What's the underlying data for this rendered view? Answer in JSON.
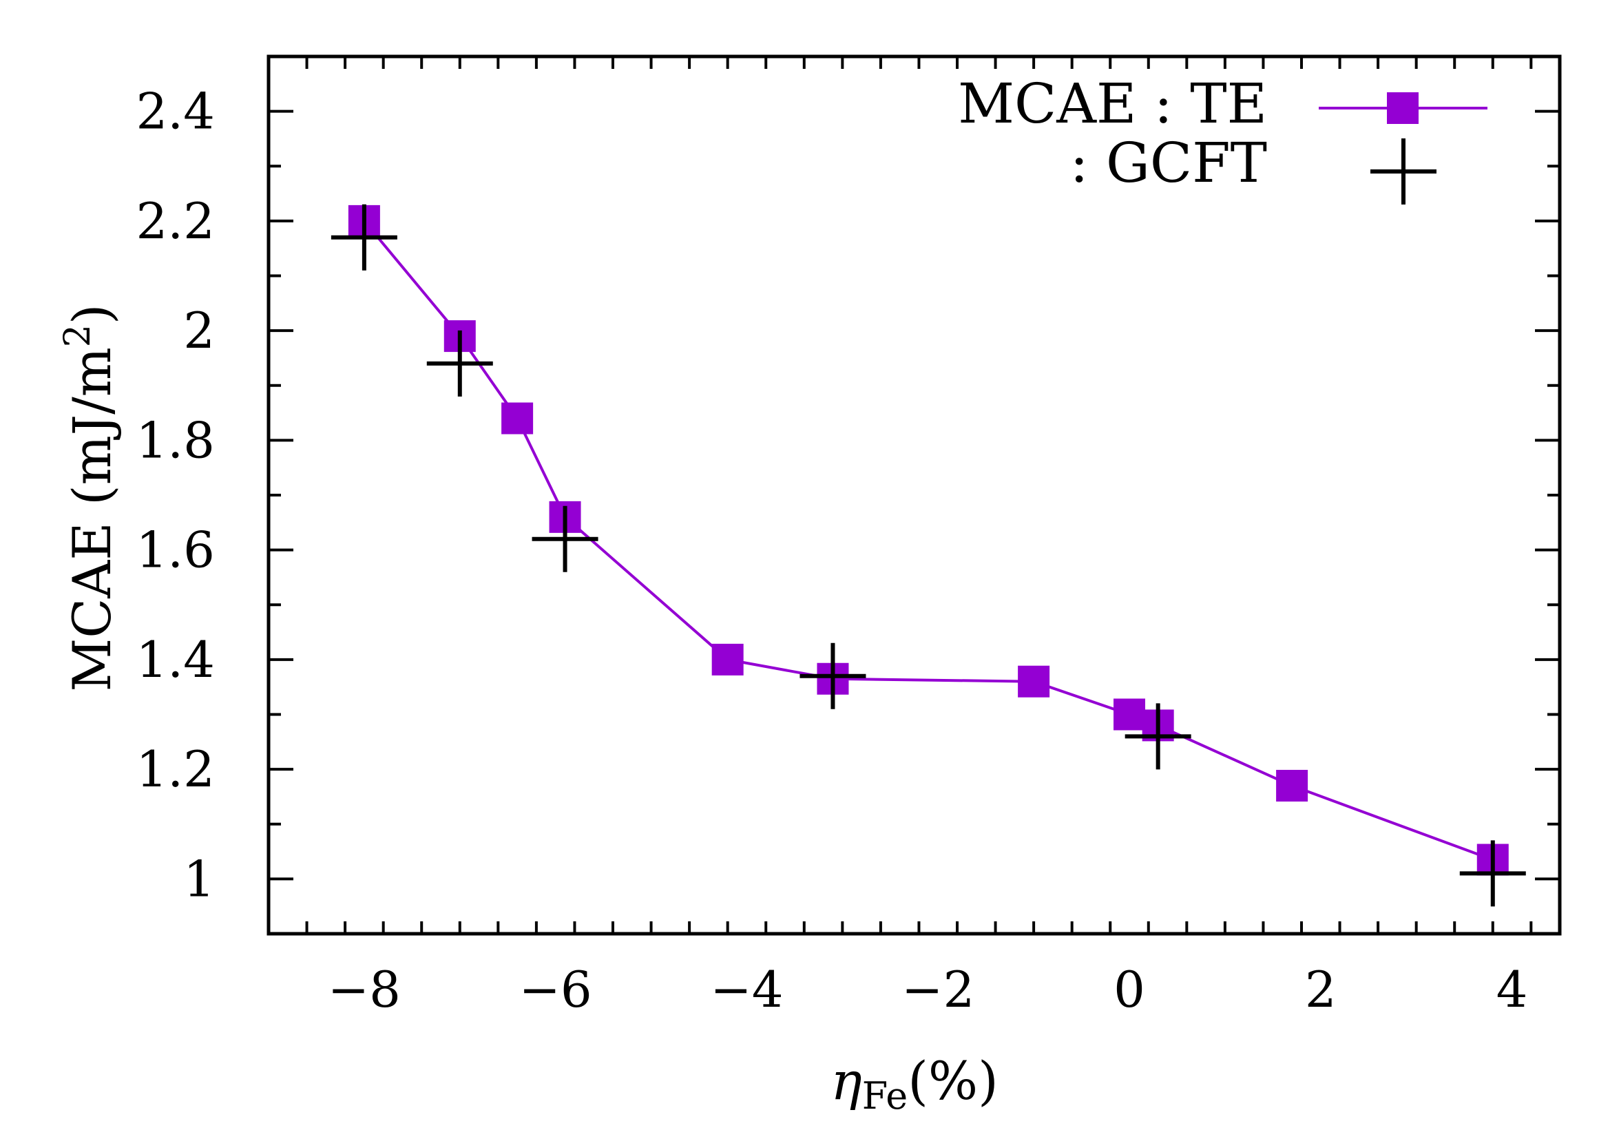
{
  "chart_data": {
    "type": "line",
    "title": "",
    "xlabel": "η",
    "xlabel_subscript": "Fe",
    "xlabel_suffix": "(%)",
    "ylabel": "MCAE (mJ/m",
    "ylabel_sup": "2",
    "ylabel_suffix": ")",
    "xlim": [
      -9.0,
      4.5
    ],
    "ylim": [
      0.9,
      2.5
    ],
    "x_ticks": [
      -8,
      -6,
      -4,
      -2,
      0,
      2,
      4
    ],
    "x_tick_labels": [
      "−8",
      "−6",
      "−4",
      "−2",
      "0",
      "2",
      "4"
    ],
    "x_minor_step": 0.4,
    "y_ticks": [
      1.0,
      1.2,
      1.4,
      1.6,
      1.8,
      2.0,
      2.2,
      2.4
    ],
    "y_tick_labels": [
      "1",
      "1.2",
      "1.4",
      "1.6",
      "1.8",
      "2",
      "2.2",
      "2.4"
    ],
    "y_minor_step": 0.1,
    "grid": false,
    "legend_position": "top-right",
    "series": [
      {
        "name": "MCAE : TE",
        "style": "line-square",
        "color": "#9400D3",
        "x": [
          -8.0,
          -7.0,
          -6.4,
          -5.9,
          -4.2,
          -3.1,
          -1.0,
          0.0,
          0.3,
          1.7,
          3.8
        ],
        "y": [
          2.2,
          1.99,
          1.84,
          1.66,
          1.4,
          1.365,
          1.36,
          1.3,
          1.28,
          1.17,
          1.035
        ]
      },
      {
        "name": ": GCFT",
        "style": "plus",
        "color": "#000000",
        "x": [
          -8.0,
          -7.0,
          -5.9,
          -3.1,
          0.3,
          3.8
        ],
        "y": [
          2.17,
          1.94,
          1.62,
          1.37,
          1.26,
          1.01
        ]
      }
    ]
  }
}
